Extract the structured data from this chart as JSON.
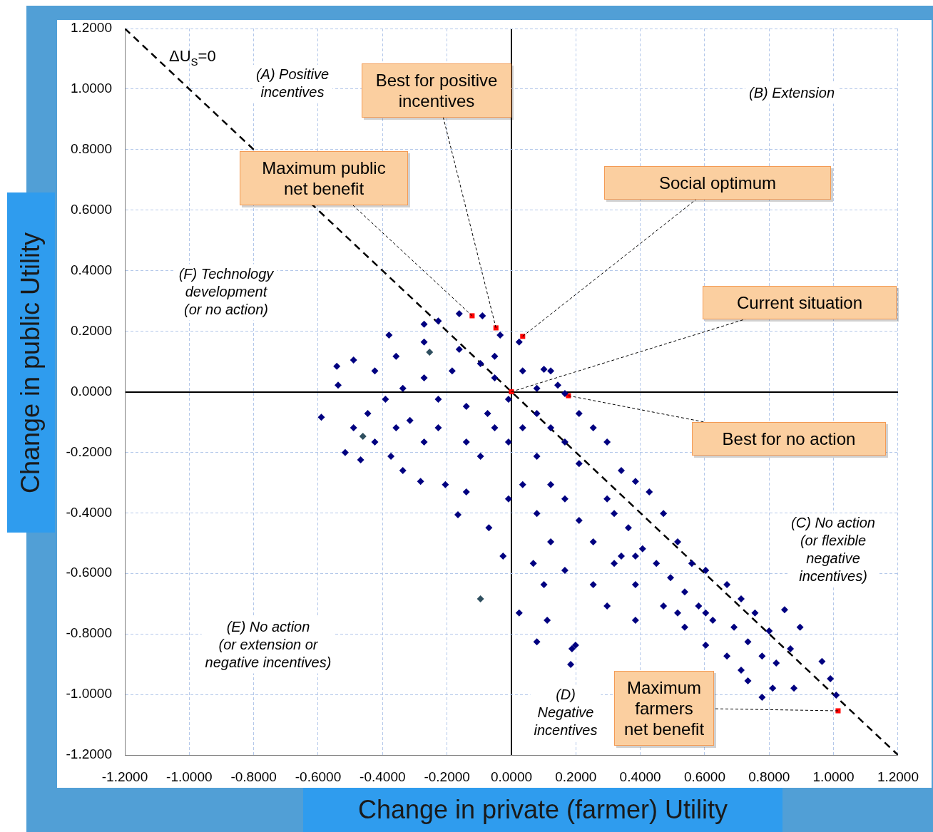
{
  "chart_data": {
    "type": "scatter",
    "xlabel": "Change in private (farmer) Utility",
    "ylabel": "Change in public Utility",
    "xlim": [
      -1.2,
      1.2
    ],
    "ylim": [
      -1.2,
      1.2
    ],
    "xticks": [
      {
        "value": -1.2,
        "label": "-1.2000"
      },
      {
        "value": -1,
        "label": "-1.0000"
      },
      {
        "value": -0.8,
        "label": "-0.8000"
      },
      {
        "value": -0.6,
        "label": "-0.6000"
      },
      {
        "value": -0.4,
        "label": "-0.4000"
      },
      {
        "value": -0.2,
        "label": "-0.2000"
      },
      {
        "value": 0,
        "label": "0.0000"
      },
      {
        "value": 0.2,
        "label": "0.2000"
      },
      {
        "value": 0.4,
        "label": "0.4000"
      },
      {
        "value": 0.6,
        "label": "0.6000"
      },
      {
        "value": 0.8,
        "label": "0.8000"
      },
      {
        "value": 1,
        "label": "1.0000"
      },
      {
        "value": 1.2,
        "label": "1.2000"
      }
    ],
    "yticks": [
      {
        "value": -1.2,
        "label": "-1.2000"
      },
      {
        "value": -1,
        "label": "-1.0000"
      },
      {
        "value": -0.8,
        "label": "-0.8000"
      },
      {
        "value": -0.6,
        "label": "-0.6000"
      },
      {
        "value": -0.4,
        "label": "-0.4000"
      },
      {
        "value": -0.2,
        "label": "-0.2000"
      },
      {
        "value": 0,
        "label": "0.0000"
      },
      {
        "value": 0.2,
        "label": "0.2000"
      },
      {
        "value": 0.4,
        "label": "0.4000"
      },
      {
        "value": 0.6,
        "label": "0.6000"
      },
      {
        "value": 0.8,
        "label": "0.8000"
      },
      {
        "value": 1,
        "label": "1.0000"
      },
      {
        "value": 1.2,
        "label": "1.2000"
      }
    ],
    "grid": true,
    "marker": "diamond",
    "series": [
      {
        "color": "#000080",
        "x": [
          -0.59,
          -0.542,
          -0.538,
          -0.516,
          -0.49,
          -0.468,
          -0.38,
          -0.271,
          -0.227,
          -0.162,
          -0.09,
          -0.035,
          0.024,
          0.101,
          0.122,
          0.144,
          0.166,
          0.21,
          0.254,
          0.297,
          0.341,
          0.385,
          0.428,
          0.472,
          0.516,
          0.56,
          0.603,
          0.669,
          0.713,
          0.756,
          0.8,
          0.848,
          0.896,
          0.866,
          0.964,
          0.99,
          1.008,
          0.877,
          0.778,
          0.811,
          0.713,
          0.669,
          0.603,
          0.538,
          0.472,
          0.385,
          0.319,
          0.254,
          0.188,
          0.184,
          0.199,
          0.079,
          0.111,
          0.068,
          0.024,
          -0.026,
          -0.07,
          -0.166,
          -0.14,
          -0.205,
          -0.282,
          -0.337,
          -0.374,
          -0.424,
          -0.49,
          -0.446,
          -0.391,
          -0.337,
          -0.271,
          -0.184,
          -0.096,
          -0.052,
          -0.009,
          0.035,
          0.079,
          0.122,
          0.166,
          0.21,
          0.319,
          0.363,
          0.407,
          0.45,
          0.494,
          0.538,
          0.581,
          0.625,
          0.691,
          0.734,
          0.778,
          0.822,
          0.734,
          0.341,
          0.297,
          0.21,
          0.166,
          0.122,
          0.079,
          -0.052,
          -0.096,
          -0.14,
          -0.227,
          -0.271,
          -0.315,
          -0.358,
          -0.227,
          -0.14,
          -0.074,
          -0.162,
          -0.271,
          -0.358,
          -0.424,
          -0.052,
          0.035,
          0.079,
          -0.009,
          0.035,
          0.079,
          -0.009,
          0.122,
          0.166,
          0.101,
          0.254,
          0.297,
          0.385,
          0.385,
          0.516,
          0.603
        ],
        "values": [
          -0.084,
          0.084,
          0.022,
          -0.201,
          0.105,
          -0.225,
          0.187,
          0.223,
          0.234,
          0.258,
          0.251,
          0.187,
          0.164,
          0.074,
          0.069,
          0.022,
          -0.006,
          -0.072,
          -0.119,
          -0.166,
          -0.26,
          -0.296,
          -0.331,
          -0.402,
          -0.496,
          -0.567,
          -0.59,
          -0.637,
          -0.684,
          -0.731,
          -0.79,
          -0.72,
          -0.778,
          -0.849,
          -0.891,
          -0.948,
          -1.002,
          -0.979,
          -1.009,
          -0.979,
          -0.92,
          -0.873,
          -0.837,
          -0.778,
          -0.708,
          -0.637,
          -0.567,
          -0.496,
          -0.849,
          -0.901,
          -0.837,
          -0.826,
          -0.755,
          -0.567,
          -0.731,
          -0.543,
          -0.449,
          -0.406,
          -0.331,
          -0.307,
          -0.296,
          -0.26,
          -0.213,
          -0.166,
          -0.119,
          -0.072,
          -0.025,
          0.011,
          0.046,
          0.069,
          0.093,
          0.046,
          -0.025,
          -0.119,
          -0.213,
          -0.307,
          -0.354,
          -0.425,
          -0.402,
          -0.449,
          -0.519,
          -0.567,
          -0.614,
          -0.661,
          -0.708,
          -0.755,
          -0.778,
          -0.826,
          -0.873,
          -0.896,
          -0.955,
          -0.543,
          -0.354,
          -0.237,
          -0.166,
          -0.119,
          -0.072,
          -0.119,
          -0.213,
          -0.166,
          -0.119,
          -0.166,
          -0.095,
          -0.119,
          -0.025,
          -0.048,
          -0.072,
          0.14,
          0.164,
          0.117,
          0.069,
          0.117,
          0.069,
          0.011,
          -0.166,
          -0.307,
          -0.402,
          -0.354,
          -0.496,
          -0.59,
          -0.637,
          -0.637,
          -0.708,
          -0.755,
          -0.543,
          -0.731,
          -0.731
        ]
      },
      {
        "color": "#2f4f5f",
        "x": [
          -0.254,
          -0.096,
          -0.461
        ],
        "values": [
          0.131,
          -0.684,
          -0.147
        ]
      },
      {
        "color": "#ff0000",
        "marker": "square",
        "x": [
          -0.122,
          -0.048,
          0.035,
          0,
          0.177,
          1.014
        ],
        "values": [
          0.251,
          0.211,
          0.183,
          0,
          -0.013,
          -1.054
        ]
      },
      {
        "type": "line",
        "name": "ΔU$_{S}$=0",
        "color": "#000000",
        "line_style": "dashed",
        "marker": "none",
        "x": [
          -1.2,
          1.2
        ],
        "values": [
          1.2,
          -1.2
        ]
      }
    ],
    "annotations": [
      {
        "text": "Best for positive incentives",
        "x": -0.048,
        "y": 0.211
      },
      {
        "text": "Maximum public net benefit",
        "x": -0.122,
        "y": 0.251
      },
      {
        "text": "Social optimum",
        "x": 0.035,
        "y": 0.183
      },
      {
        "text": "Current situation",
        "x": 0,
        "y": 0
      },
      {
        "text": "Best for no action",
        "x": 0.177,
        "y": -0.013
      },
      {
        "text": "Maximum farmers net benefit",
        "x": 1.014,
        "y": -1.054
      },
      "(A) Positive incentives",
      "(B) Extension",
      "(F) Technology development (or no action)",
      "(E) No action (or extension or negative incentives)",
      "(D) Negative incentives",
      "(C) No action (or flexible negative incentives)"
    ]
  }
}
